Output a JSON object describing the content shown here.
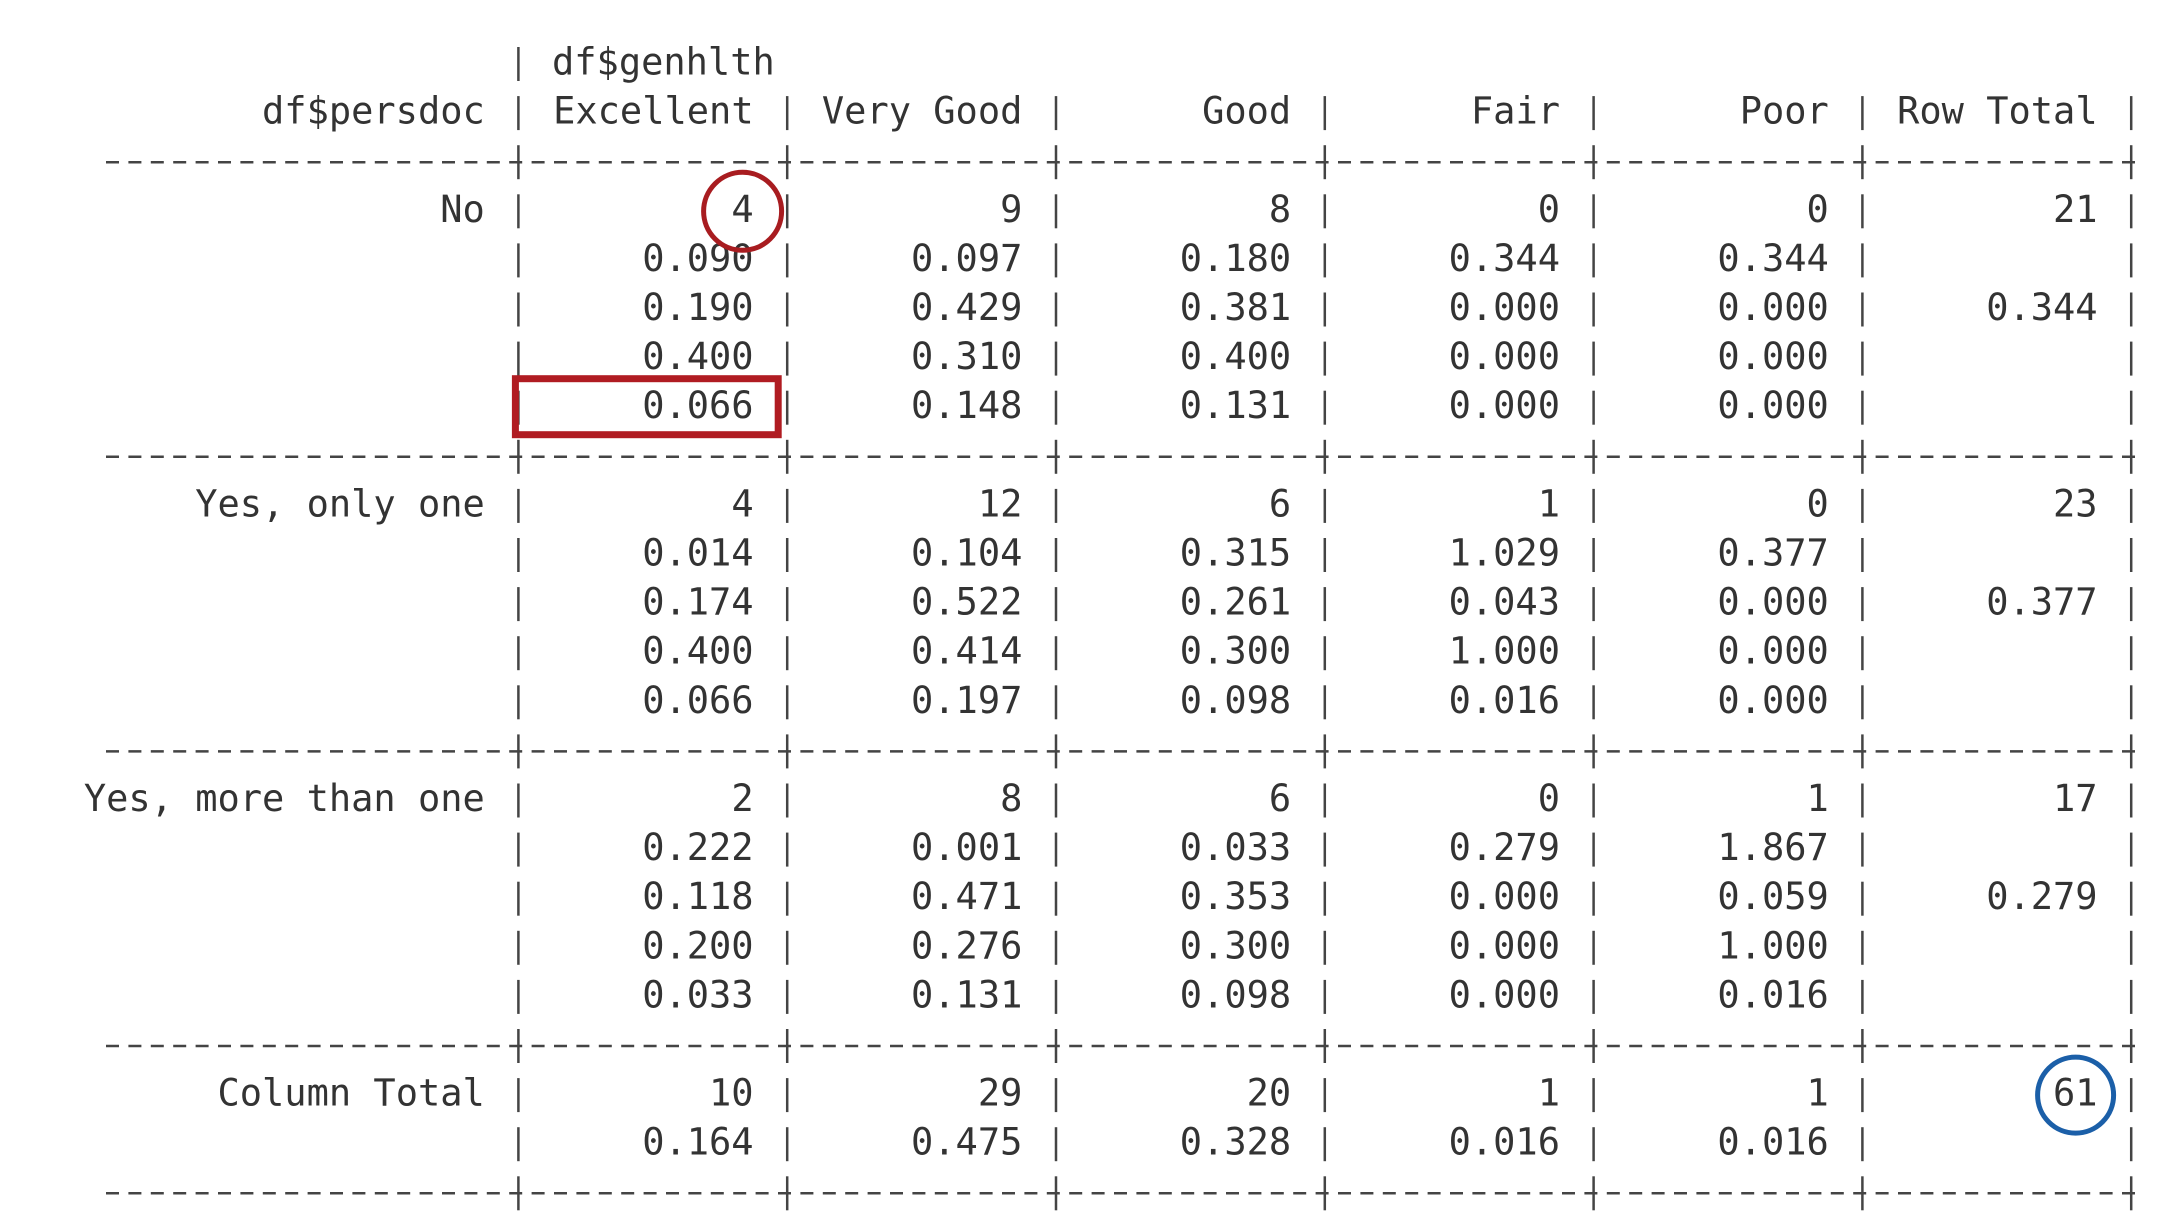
{
  "header": {
    "column_variable": "df$genhlth",
    "row_variable": "df$persdoc",
    "columns": [
      "Excellent",
      "Very Good",
      "Good",
      "Fair",
      "Poor",
      "Row Total"
    ]
  },
  "rows": [
    {
      "label": "No",
      "cells": [
        [
          "4",
          "0.090",
          "0.190",
          "0.400",
          "0.066"
        ],
        [
          "9",
          "0.097",
          "0.429",
          "0.310",
          "0.148"
        ],
        [
          "8",
          "0.180",
          "0.381",
          "0.400",
          "0.131"
        ],
        [
          "0",
          "0.344",
          "0.000",
          "0.000",
          "0.000"
        ],
        [
          "0",
          "0.344",
          "0.000",
          "0.000",
          "0.000"
        ]
      ],
      "row_total": {
        "count": "21",
        "proportion": "0.344"
      }
    },
    {
      "label": "Yes, only one",
      "cells": [
        [
          "4",
          "0.014",
          "0.174",
          "0.400",
          "0.066"
        ],
        [
          "12",
          "0.104",
          "0.522",
          "0.414",
          "0.197"
        ],
        [
          "6",
          "0.315",
          "0.261",
          "0.300",
          "0.098"
        ],
        [
          "1",
          "1.029",
          "0.043",
          "1.000",
          "0.016"
        ],
        [
          "0",
          "0.377",
          "0.000",
          "0.000",
          "0.000"
        ]
      ],
      "row_total": {
        "count": "23",
        "proportion": "0.377"
      }
    },
    {
      "label": "Yes, more than one",
      "cells": [
        [
          "2",
          "0.222",
          "0.118",
          "0.200",
          "0.033"
        ],
        [
          "8",
          "0.001",
          "0.471",
          "0.276",
          "0.131"
        ],
        [
          "6",
          "0.033",
          "0.353",
          "0.300",
          "0.098"
        ],
        [
          "0",
          "0.279",
          "0.000",
          "0.000",
          "0.000"
        ],
        [
          "1",
          "1.867",
          "0.059",
          "1.000",
          "0.016"
        ]
      ],
      "row_total": {
        "count": "17",
        "proportion": "0.279"
      }
    }
  ],
  "column_total": {
    "label": "Column Total",
    "cells": [
      [
        "10",
        "0.164"
      ],
      [
        "29",
        "0.475"
      ],
      [
        "20",
        "0.328"
      ],
      [
        "1",
        "0.016"
      ],
      [
        "1",
        "0.016"
      ]
    ],
    "total": "61"
  }
}
